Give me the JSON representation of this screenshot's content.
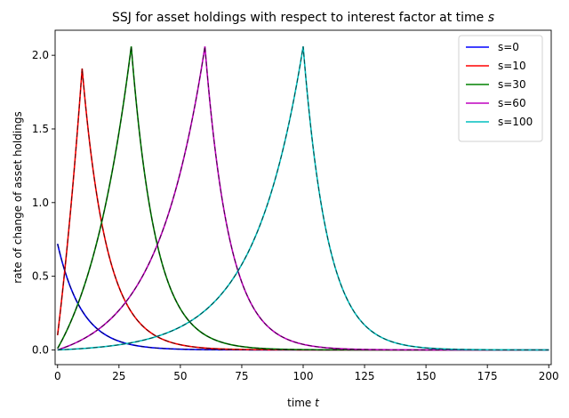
{
  "chart_data": {
    "type": "line",
    "title": "SSJ for asset holdings with respect to interest factor at time s",
    "title_parts": {
      "text": "SSJ for asset holdings with respect to interest factor at time ",
      "var": "s"
    },
    "xlabel": "time t",
    "xlabel_parts": {
      "text": "time ",
      "var": "t"
    },
    "ylabel": "rate of change of asset holdings",
    "xlim": [
      -1,
      201
    ],
    "ylim": [
      -0.1,
      2.17
    ],
    "xticks": [
      0,
      25,
      50,
      75,
      100,
      125,
      150,
      175,
      200
    ],
    "yticks": [
      0.0,
      0.5,
      1.0,
      1.5,
      2.0
    ],
    "ytick_labels": [
      "0.0",
      "0.5",
      "1.0",
      "1.5",
      "2.0"
    ],
    "grid": false,
    "legend_position": "top-right",
    "overlay_style": "dashed black curve drawn over each series",
    "series": [
      {
        "name": "s=0",
        "color": "#0000ff",
        "s": 0,
        "start_value": 0.72,
        "left_start": 0.0,
        "peak": 0.72,
        "left_rate": 0.05,
        "right_rate": 0.1
      },
      {
        "name": "s=10",
        "color": "#ff0000",
        "s": 10,
        "start_value": 0.1,
        "left_start": 0.1,
        "peak": 1.91,
        "left_rate": 0.05,
        "right_rate": 0.1
      },
      {
        "name": "s=30",
        "color": "#008000",
        "s": 30,
        "start_value": 0.01,
        "left_start": 0.01,
        "peak": 2.06,
        "left_rate": 0.05,
        "right_rate": 0.1
      },
      {
        "name": "s=60",
        "color": "#bf00bf",
        "s": 60,
        "start_value": 0.0,
        "left_start": 0.0,
        "peak": 2.06,
        "left_rate": 0.05,
        "right_rate": 0.1
      },
      {
        "name": "s=100",
        "color": "#00bfbf",
        "s": 100,
        "start_value": 0.0,
        "left_start": 0.0,
        "peak": 2.06,
        "left_rate": 0.05,
        "right_rate": 0.1
      }
    ]
  }
}
